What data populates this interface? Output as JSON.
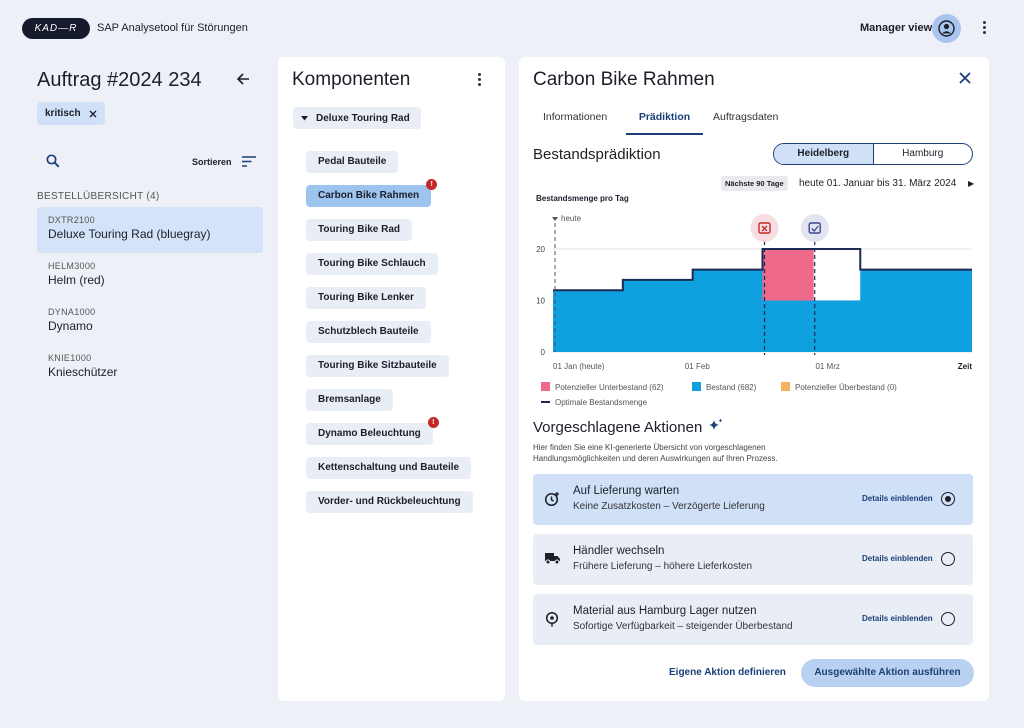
{
  "app": {
    "logo_text": "KAD—R",
    "title": "SAP Analysetool für Störungen",
    "view_label": "Manager view"
  },
  "order": {
    "title": "Auftrag #2024 234",
    "tag": "kritisch",
    "sort_label": "Sortieren",
    "list_header": "BESTELLÜBERSICHT (4)",
    "items": [
      {
        "code": "DXTR2100",
        "name": "Deluxe Touring Rad (bluegray)"
      },
      {
        "code": "HELM3000",
        "name": "Helm (red)"
      },
      {
        "code": "DYNA1000",
        "name": "Dynamo"
      },
      {
        "code": "KNIE1000",
        "name": "Knieschützer"
      }
    ]
  },
  "components": {
    "title": "Komponenten",
    "dropdown": "Deluxe Touring Rad",
    "items": [
      {
        "label": "Pedal Bauteile",
        "alert": ""
      },
      {
        "label": "Carbon Bike Rahmen",
        "alert": "!"
      },
      {
        "label": "Touring Bike Rad",
        "alert": ""
      },
      {
        "label": "Touring Bike Schlauch",
        "alert": ""
      },
      {
        "label": "Touring Bike Lenker",
        "alert": ""
      },
      {
        "label": "Schutzblech Bauteile",
        "alert": ""
      },
      {
        "label": "Touring Bike Sitzbauteile",
        "alert": ""
      },
      {
        "label": "Bremsanlage",
        "alert": ""
      },
      {
        "label": "Dynamo Beleuchtung",
        "alert": "!"
      },
      {
        "label": "Kettenschaltung und Bauteile",
        "alert": ""
      },
      {
        "label": "Vorder- und Rückbeleuchtung",
        "alert": ""
      }
    ]
  },
  "detail": {
    "title": "Carbon Bike Rahmen",
    "tabs": [
      "Informationen",
      "Prädiktion",
      "Auftragsdaten"
    ],
    "section_title": "Bestandsprädiktion",
    "locations": [
      "Heidelberg",
      "Hamburg"
    ],
    "period_chip": "Nächste 90 Tage",
    "period_text": "heute 01. Januar bis 31. März 2024",
    "chart_label": "Bestandsmenge pro Tag",
    "actions_title": "Vorgeschlagene Aktionen",
    "actions_desc": "Hier finden Sie eine KI-generierte Übersicht von vorgeschlagenen Handlungsmöglichkeiten und deren Auswirkungen auf Ihren Prozess.",
    "actions": [
      {
        "title": "Auf Lieferung warten",
        "subtitle": "Keine Zusatzkosten – Verzögerte Lieferung",
        "details": "Details einblenden"
      },
      {
        "title": "Händler wechseln",
        "subtitle": "Frühere Lieferung – höhere Lieferkosten",
        "details": "Details einblenden"
      },
      {
        "title": "Material aus Hamburg Lager nutzen",
        "subtitle": "Sofortige Verfügbarkeit – steigender Überbestand",
        "details": "Details einblenden"
      }
    ],
    "custom_action": "Eigene Aktion definieren",
    "execute_action": "Ausgewählte Aktion ausführen"
  },
  "chart_data": {
    "type": "area",
    "xlabel": "Zeit",
    "x_ticks": [
      "01 Jan (heute)",
      "01 Feb",
      "01 Mrz"
    ],
    "today_label": "heute",
    "ylim": [
      0,
      20
    ],
    "y_ticks": [
      0,
      10,
      20
    ],
    "x_days": [
      0,
      15,
      30,
      45,
      56,
      66,
      90
    ],
    "bestand": [
      12,
      14,
      16,
      10,
      10,
      16,
      16
    ],
    "optimal": [
      12,
      14,
      16,
      20,
      20,
      16,
      16
    ],
    "shortage_range": [
      45,
      56
    ],
    "legend": [
      "Potenzieller Unterbestand (62)",
      "Bestand (682)",
      "Potenzieller Überbestand (0)",
      "Optimale Bestandsmenge"
    ],
    "colors": {
      "bestand": "#0ea0df",
      "unterbestand": "#ef6a8a",
      "ueberbestand": "#f4b35f",
      "optimal": "#1c2b55"
    }
  }
}
